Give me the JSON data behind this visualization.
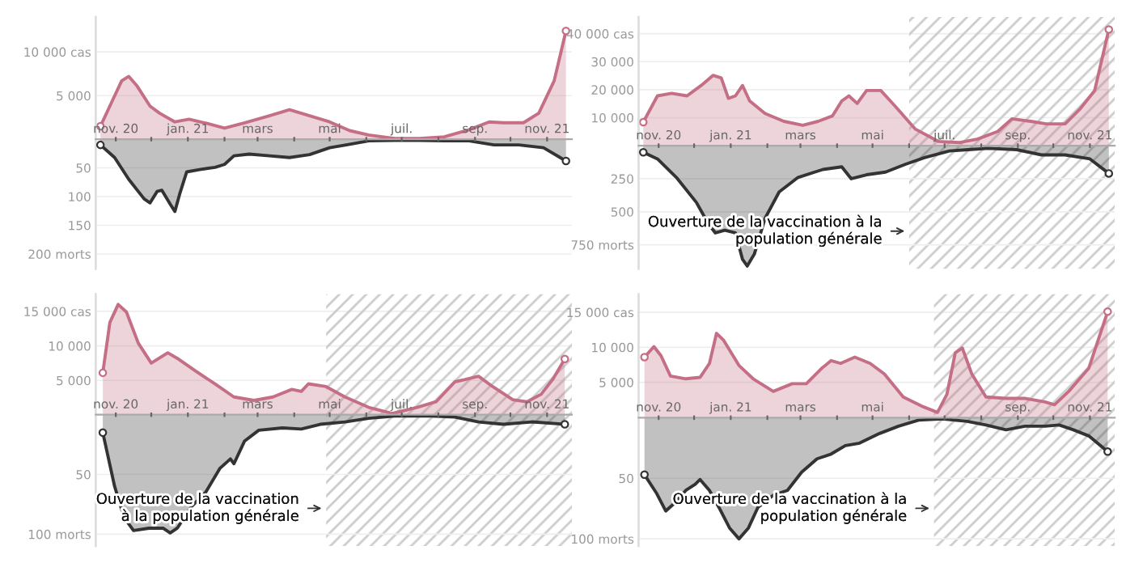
{
  "chart_data": [
    {
      "type": "area",
      "xlim": [
        "2020-10-15",
        "2021-11-22"
      ],
      "xticks": [
        {
          "value": "2020-11-01",
          "label": "nov. 20"
        },
        {
          "value": "2020-12-01",
          "label": null
        },
        {
          "value": "2021-01-01",
          "label": "jan. 21"
        },
        {
          "value": "2021-02-01",
          "label": null
        },
        {
          "value": "2021-03-01",
          "label": "mars"
        },
        {
          "value": "2021-04-01",
          "label": null
        },
        {
          "value": "2021-05-01",
          "label": "mai"
        },
        {
          "value": "2021-06-01",
          "label": null
        },
        {
          "value": "2021-07-01",
          "label": "juil."
        },
        {
          "value": "2021-08-01",
          "label": null
        },
        {
          "value": "2021-09-01",
          "label": "sep."
        },
        {
          "value": "2021-10-01",
          "label": null
        },
        {
          "value": "2021-11-01",
          "label": "nov. 21"
        }
      ],
      "ylim": [
        -14800,
        14000
      ],
      "yticks": [
        {
          "value": 5000,
          "label": "5 000"
        },
        {
          "value": 10000,
          "label": "10 000 cas"
        }
      ],
      "y2lim": [
        226,
        -213
      ],
      "y2ticks": [
        50,
        100,
        150,
        {
          "value": 200,
          "label": "200 morts"
        }
      ],
      "grid": "y",
      "series": [
        {
          "color": "#c46f86",
          "x": [
            "2020-10-19",
            "2020-10-29",
            "2020-11-06",
            "2020-11-12",
            "2020-11-19",
            "2020-11-30",
            "2020-12-08",
            "2020-12-21",
            "2021-01-02",
            "2021-01-15",
            "2021-02-01",
            "2021-02-18",
            "2021-03-11",
            "2021-03-28",
            "2021-04-14",
            "2021-05-01",
            "2021-05-18",
            "2021-06-03",
            "2021-06-25",
            "2021-07-16",
            "2021-08-06",
            "2021-08-27",
            "2021-09-13",
            "2021-09-25",
            "2021-10-12",
            "2021-10-25",
            "2021-11-07",
            "2021-11-17"
          ],
          "values": [
            1500,
            4400,
            6700,
            7200,
            6100,
            3800,
            3000,
            2000,
            2300,
            1900,
            1300,
            1900,
            2700,
            3400,
            2700,
            2000,
            1000,
            500,
            100,
            100,
            300,
            1100,
            2000,
            1900,
            1900,
            3000,
            6700,
            12400
          ]
        },
        {
          "color": "#333333",
          "axis": "y2",
          "x": [
            "2020-10-19",
            "2020-10-31",
            "2020-11-12",
            "2020-11-25",
            "2020-11-30",
            "2020-12-06",
            "2020-12-10",
            "2020-12-17",
            "2020-12-21",
            "2020-12-25",
            "2020-12-31",
            "2021-01-11",
            "2021-01-24",
            "2021-02-01",
            "2021-02-09",
            "2021-02-22",
            "2021-03-11",
            "2021-03-28",
            "2021-04-14",
            "2021-05-01",
            "2021-05-18",
            "2021-06-03",
            "2021-06-25",
            "2021-07-16",
            "2021-08-06",
            "2021-08-27",
            "2021-09-17",
            "2021-10-08",
            "2021-10-29",
            "2021-11-17"
          ],
          "values": [
            10,
            32,
            70,
            104,
            111,
            91,
            89,
            113,
            126,
            96,
            57,
            53,
            49,
            44,
            29,
            26,
            29,
            32,
            27,
            15,
            9,
            3,
            2,
            2,
            3,
            3,
            10,
            10,
            15,
            38
          ]
        }
      ]
    },
    {
      "type": "area",
      "xlim": [
        "2020-10-15",
        "2021-11-22"
      ],
      "xticks": [
        {
          "value": "2020-11-01",
          "label": "nov. 20"
        },
        {
          "value": "2020-12-01",
          "label": null
        },
        {
          "value": "2021-01-01",
          "label": "jan. 21"
        },
        {
          "value": "2021-02-01",
          "label": null
        },
        {
          "value": "2021-03-01",
          "label": "mars"
        },
        {
          "value": "2021-04-01",
          "label": null
        },
        {
          "value": "2021-05-01",
          "label": "mai"
        },
        {
          "value": "2021-06-01",
          "label": null
        },
        {
          "value": "2021-07-01",
          "label": "juil."
        },
        {
          "value": "2021-08-01",
          "label": null
        },
        {
          "value": "2021-09-01",
          "label": "sep."
        },
        {
          "value": "2021-10-01",
          "label": null
        },
        {
          "value": "2021-11-01",
          "label": "nov. 21"
        }
      ],
      "ylim": [
        -44000,
        46000
      ],
      "yticks": [
        {
          "value": 10000,
          "label": "10 000"
        },
        {
          "value": 20000,
          "label": "20 000"
        },
        {
          "value": 30000,
          "label": "30 000"
        },
        {
          "value": 40000,
          "label": "40 000 cas"
        }
      ],
      "y2lim": [
        932,
        -974
      ],
      "y2ticks": [
        250,
        500,
        {
          "value": 750,
          "label": "750 morts"
        }
      ],
      "grid": "y",
      "bands": [
        {
          "axis": "x",
          "from": "2021-06-01",
          "to": "2021-11-22",
          "color": "#cccccc"
        }
      ],
      "annotations": [
        "Ouverture de la vaccination à la\npopulation générale"
      ],
      "series": [
        {
          "color": "#c46f86",
          "x": [
            "2020-10-19",
            "2020-10-31",
            "2020-11-12",
            "2020-11-25",
            "2020-12-07",
            "2020-12-17",
            "2020-12-24",
            "2020-12-30",
            "2021-01-05",
            "2021-01-11",
            "2021-01-17",
            "2021-01-30",
            "2021-02-15",
            "2021-03-03",
            "2021-03-16",
            "2021-03-28",
            "2021-04-05",
            "2021-04-11",
            "2021-04-18",
            "2021-04-26",
            "2021-05-08",
            "2021-05-20",
            "2021-06-06",
            "2021-06-26",
            "2021-07-13",
            "2021-07-29",
            "2021-08-15",
            "2021-08-27",
            "2021-09-12",
            "2021-09-25",
            "2021-10-11",
            "2021-10-24",
            "2021-11-05",
            "2021-11-17"
          ],
          "values": [
            8400,
            17800,
            18700,
            17800,
            21500,
            25100,
            24200,
            16900,
            17800,
            21500,
            16000,
            11500,
            8700,
            7300,
            8700,
            10600,
            16000,
            17800,
            15100,
            19700,
            19700,
            14200,
            6000,
            1500,
            1100,
            2400,
            5100,
            9600,
            8700,
            7800,
            7800,
            13300,
            19700,
            41500
          ]
        },
        {
          "color": "#333333",
          "axis": "y2",
          "x": [
            "2020-10-19",
            "2020-10-31",
            "2020-11-16",
            "2020-12-03",
            "2020-12-13",
            "2020-12-19",
            "2020-12-27",
            "2021-01-05",
            "2021-01-11",
            "2021-01-15",
            "2021-01-21",
            "2021-01-30",
            "2021-02-11",
            "2021-02-27",
            "2021-03-20",
            "2021-04-05",
            "2021-04-13",
            "2021-04-26",
            "2021-05-12",
            "2021-05-29",
            "2021-06-14",
            "2021-07-05",
            "2021-07-21",
            "2021-08-07",
            "2021-08-31",
            "2021-09-21",
            "2021-10-11",
            "2021-11-01",
            "2021-11-17"
          ],
          "values": [
            50,
            100,
            240,
            430,
            590,
            660,
            640,
            660,
            860,
            910,
            820,
            550,
            350,
            240,
            180,
            160,
            250,
            220,
            200,
            140,
            90,
            40,
            30,
            20,
            30,
            70,
            70,
            100,
            210
          ]
        }
      ]
    },
    {
      "type": "area",
      "xlim": [
        "2020-10-15",
        "2021-11-22"
      ],
      "xticks": [
        {
          "value": "2020-11-01",
          "label": "nov. 20"
        },
        {
          "value": "2020-12-01",
          "label": null
        },
        {
          "value": "2021-01-01",
          "label": "jan. 21"
        },
        {
          "value": "2021-02-01",
          "label": null
        },
        {
          "value": "2021-03-01",
          "label": "mars"
        },
        {
          "value": "2021-04-01",
          "label": null
        },
        {
          "value": "2021-05-01",
          "label": "mai"
        },
        {
          "value": "2021-06-01",
          "label": null
        },
        {
          "value": "2021-07-01",
          "label": "juil."
        },
        {
          "value": "2021-08-01",
          "label": null
        },
        {
          "value": "2021-09-01",
          "label": "sep."
        },
        {
          "value": "2021-10-01",
          "label": null
        },
        {
          "value": "2021-11-01",
          "label": "nov. 21"
        }
      ],
      "ylim": [
        -19000,
        17500
      ],
      "yticks": [
        {
          "value": 5000,
          "label": "5 000"
        },
        {
          "value": 10000,
          "label": "10 000"
        },
        {
          "value": 15000,
          "label": "15 000 cas"
        }
      ],
      "y2lim": [
        110,
        -101
      ],
      "y2ticks": [
        50,
        {
          "value": 100,
          "label": "100 morts"
        }
      ],
      "grid": "y",
      "bands": [
        {
          "axis": "x",
          "from": "2021-04-28",
          "to": "2021-11-22",
          "color": "#cccccc"
        }
      ],
      "annotations": [
        "Ouverture de la vaccination\nà la population générale"
      ],
      "series": [
        {
          "color": "#c46f86",
          "x": [
            "2020-10-21",
            "2020-10-27",
            "2020-11-03",
            "2020-11-10",
            "2020-11-20",
            "2020-12-01",
            "2020-12-15",
            "2020-12-23",
            "2021-01-08",
            "2021-01-24",
            "2021-02-09",
            "2021-02-26",
            "2021-03-14",
            "2021-03-30",
            "2021-04-07",
            "2021-04-13",
            "2021-04-28",
            "2021-05-14",
            "2021-06-03",
            "2021-06-23",
            "2021-07-14",
            "2021-07-30",
            "2021-08-15",
            "2021-08-23",
            "2021-09-04",
            "2021-09-16",
            "2021-10-03",
            "2021-10-15",
            "2021-10-27",
            "2021-11-06",
            "2021-11-16"
          ],
          "values": [
            6100,
            13400,
            16000,
            14900,
            10400,
            7500,
            9000,
            8200,
            6300,
            4500,
            2600,
            2100,
            2600,
            3700,
            3400,
            4500,
            4100,
            2600,
            1100,
            200,
            1100,
            1900,
            4800,
            5100,
            5600,
            4100,
            2200,
            1900,
            3000,
            5200,
            8100
          ]
        },
        {
          "color": "#333333",
          "axis": "y2",
          "x": [
            "2020-10-21",
            "2020-10-31",
            "2020-11-08",
            "2020-11-16",
            "2020-11-29",
            "2020-12-11",
            "2020-12-17",
            "2020-12-23",
            "2021-01-04",
            "2021-01-16",
            "2021-01-28",
            "2021-02-06",
            "2021-02-09",
            "2021-02-18",
            "2021-03-02",
            "2021-03-22",
            "2021-04-07",
            "2021-04-23",
            "2021-05-14",
            "2021-06-03",
            "2021-06-27",
            "2021-07-22",
            "2021-08-15",
            "2021-09-04",
            "2021-09-25",
            "2021-10-19",
            "2021-11-16"
          ],
          "values": [
            15,
            60,
            86,
            97,
            95,
            95,
            99,
            95,
            77,
            65,
            45,
            37,
            41,
            22,
            13,
            11,
            12,
            8,
            6,
            3,
            1,
            1,
            2,
            6,
            8,
            6,
            8
          ]
        }
      ]
    },
    {
      "type": "area",
      "xlim": [
        "2020-10-15",
        "2021-11-22"
      ],
      "xticks": [
        {
          "value": "2020-11-01",
          "label": "nov. 20"
        },
        {
          "value": "2020-12-01",
          "label": null
        },
        {
          "value": "2021-01-01",
          "label": "jan. 21"
        },
        {
          "value": "2021-02-01",
          "label": null
        },
        {
          "value": "2021-03-01",
          "label": "mars"
        },
        {
          "value": "2021-04-01",
          "label": null
        },
        {
          "value": "2021-05-01",
          "label": "mai"
        },
        {
          "value": "2021-06-01",
          "label": null
        },
        {
          "value": "2021-07-01",
          "label": null
        },
        {
          "value": "2021-08-01",
          "label": null
        },
        {
          "value": "2021-09-01",
          "label": "sep."
        },
        {
          "value": "2021-10-01",
          "label": null
        },
        {
          "value": "2021-11-01",
          "label": "nov. 21"
        }
      ],
      "ylim": [
        -18400,
        17600
      ],
      "yticks": [
        {
          "value": 5000,
          "label": "5 000"
        },
        {
          "value": 10000,
          "label": "10 000"
        },
        {
          "value": 15000,
          "label": "15 000 cas"
        }
      ],
      "y2lim": [
        106,
        -102
      ],
      "y2ticks": [
        50,
        {
          "value": 100,
          "label": "100 morts"
        }
      ],
      "grid": "y",
      "bands": [
        {
          "axis": "x",
          "from": "2021-06-22",
          "to": "2021-11-22",
          "color": "#cccccc"
        }
      ],
      "annotations": [
        "Ouverture de la vaccination à la\npopulation générale"
      ],
      "series": [
        {
          "color": "#c46f86",
          "x": [
            "2020-10-20",
            "2020-10-28",
            "2020-11-03",
            "2020-11-11",
            "2020-11-24",
            "2020-12-06",
            "2020-12-14",
            "2020-12-20",
            "2020-12-26",
            "2021-01-08",
            "2021-01-20",
            "2021-02-06",
            "2021-02-22",
            "2021-03-06",
            "2021-03-19",
            "2021-03-27",
            "2021-04-04",
            "2021-04-16",
            "2021-04-29",
            "2021-05-11",
            "2021-05-27",
            "2021-06-13",
            "2021-06-25",
            "2021-07-03",
            "2021-07-10",
            "2021-07-16",
            "2021-07-24",
            "2021-08-05",
            "2021-08-22",
            "2021-09-07",
            "2021-09-24",
            "2021-10-02",
            "2021-10-14",
            "2021-10-31",
            "2021-11-16"
          ],
          "values": [
            8600,
            10100,
            8800,
            5900,
            5500,
            5700,
            7700,
            12000,
            11000,
            7400,
            5500,
            3700,
            4800,
            4800,
            7000,
            8100,
            7700,
            8600,
            7700,
            6200,
            2900,
            1500,
            700,
            3300,
            9200,
            9900,
            6200,
            2900,
            2700,
            2700,
            2200,
            1800,
            3700,
            7000,
            15100
          ]
        },
        {
          "color": "#333333",
          "axis": "y2",
          "x": [
            "2020-10-20",
            "2020-10-30",
            "2020-11-07",
            "2020-11-15",
            "2020-11-24",
            "2020-12-02",
            "2020-12-06",
            "2020-12-14",
            "2020-12-22",
            "2020-12-31",
            "2021-01-08",
            "2021-01-16",
            "2021-01-24",
            "2021-02-06",
            "2021-02-18",
            "2021-03-02",
            "2021-03-15",
            "2021-03-27",
            "2021-04-08",
            "2021-04-20",
            "2021-05-07",
            "2021-05-23",
            "2021-06-09",
            "2021-06-29",
            "2021-07-20",
            "2021-08-05",
            "2021-08-22",
            "2021-09-07",
            "2021-09-24",
            "2021-10-06",
            "2021-10-18",
            "2021-10-31",
            "2021-11-16"
          ],
          "values": [
            47,
            62,
            77,
            70,
            60,
            55,
            51,
            60,
            74,
            91,
            100,
            91,
            74,
            64,
            60,
            45,
            34,
            30,
            23,
            21,
            13,
            7,
            2,
            1,
            3,
            6,
            10,
            7,
            7,
            6,
            10,
            15,
            28
          ]
        }
      ]
    }
  ]
}
